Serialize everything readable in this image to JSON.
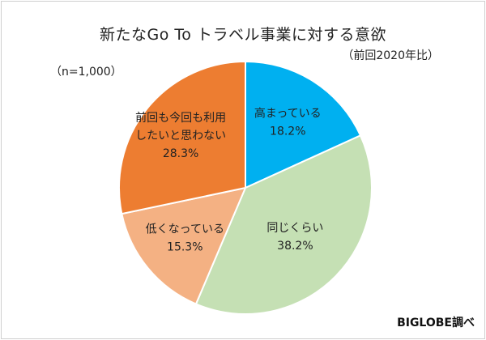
{
  "chart_data": {
    "type": "pie",
    "title": "新たなGo To トラベル事業に対する意欲",
    "note": "（前回2020年比）",
    "sample": "（n=1,000）",
    "source": "BIGLOBE調べ",
    "slices": [
      {
        "label_lines": [
          "高まっている"
        ],
        "value": 18.2,
        "value_text": "18.2%",
        "color": "#00b0f0"
      },
      {
        "label_lines": [
          "同じくらい"
        ],
        "value": 38.2,
        "value_text": "38.2%",
        "color": "#c5e0b4"
      },
      {
        "label_lines": [
          "低くなっている"
        ],
        "value": 15.3,
        "value_text": "15.3%",
        "color": "#f4b183"
      },
      {
        "label_lines": [
          "前回も今回も利用",
          "したいと思わない"
        ],
        "value": 28.3,
        "value_text": "28.3%",
        "color": "#ed7d31"
      }
    ]
  }
}
